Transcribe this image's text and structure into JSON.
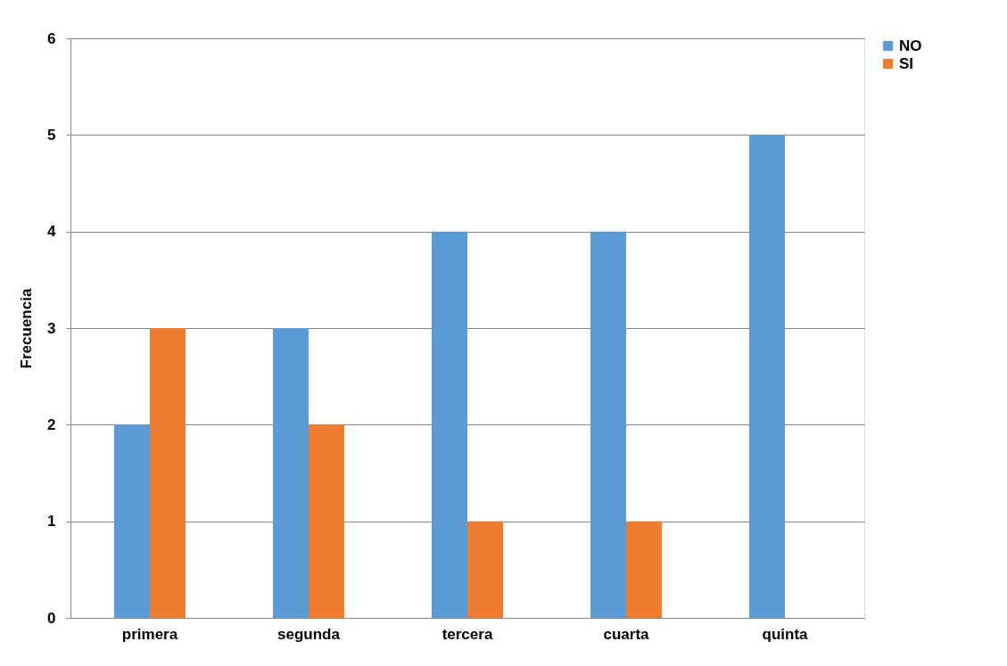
{
  "chart_data": {
    "type": "bar",
    "ylabel": "Frecuencia",
    "categories": [
      "primera",
      "segunda",
      "tercera",
      "cuarta",
      "quinta"
    ],
    "series": [
      {
        "name": "NO",
        "color": "#5b9bd5",
        "values": [
          2,
          3,
          4,
          4,
          5
        ]
      },
      {
        "name": "SI",
        "color": "#ed7d31",
        "values": [
          3,
          2,
          1,
          1,
          null
        ]
      }
    ],
    "ylim": [
      0,
      6
    ],
    "yticks": [
      0,
      1,
      2,
      3,
      4,
      5,
      6
    ],
    "grid": "y",
    "legend": "right"
  }
}
